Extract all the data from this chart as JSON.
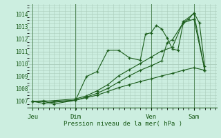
{
  "background_color": "#cceee0",
  "grid_color": "#aaccbb",
  "line_color": "#1a5c1a",
  "xlabel": "Pression niveau de la mer( hPa )",
  "ylim": [
    1006.5,
    1014.8
  ],
  "yticks": [
    1007,
    1008,
    1009,
    1010,
    1011,
    1012,
    1013,
    1014
  ],
  "xtick_labels": [
    "Jeu",
    "Dim",
    "Ven",
    "Sam"
  ],
  "xtick_positions": [
    0.0,
    0.222,
    0.611,
    0.833
  ],
  "vline_positions": [
    0.0,
    0.222,
    0.611,
    0.833
  ],
  "series": [
    {
      "x": [
        0.0,
        0.056,
        0.111,
        0.222,
        0.278,
        0.333,
        0.389,
        0.444,
        0.5,
        0.556,
        0.583,
        0.611,
        0.639,
        0.667,
        0.694,
        0.722,
        0.75,
        0.778,
        0.806,
        0.833,
        0.861,
        0.889
      ],
      "y": [
        1007.0,
        1007.0,
        1006.8,
        1007.1,
        1009.0,
        1009.4,
        1011.1,
        1011.1,
        1010.5,
        1010.3,
        1012.4,
        1012.5,
        1013.1,
        1012.8,
        1012.1,
        1011.2,
        1011.1,
        1013.3,
        1013.6,
        1014.1,
        1013.3,
        1009.8
      ]
    },
    {
      "x": [
        0.0,
        0.056,
        0.111,
        0.222,
        0.278,
        0.333,
        0.389,
        0.444,
        0.5,
        0.556,
        0.611,
        0.667,
        0.722,
        0.778,
        0.833,
        0.889
      ],
      "y": [
        1007.0,
        1007.05,
        1007.0,
        1007.1,
        1007.3,
        1007.5,
        1007.8,
        1008.1,
        1008.35,
        1008.6,
        1008.8,
        1009.05,
        1009.25,
        1009.5,
        1009.7,
        1009.5
      ]
    },
    {
      "x": [
        0.0,
        0.056,
        0.222,
        0.278,
        0.333,
        0.389,
        0.444,
        0.5,
        0.556,
        0.611,
        0.667,
        0.694,
        0.722,
        0.778,
        0.833,
        0.889
      ],
      "y": [
        1007.0,
        1006.85,
        1007.1,
        1007.35,
        1007.65,
        1008.05,
        1008.55,
        1009.05,
        1009.5,
        1009.85,
        1010.25,
        1011.7,
        1011.95,
        1013.3,
        1013.6,
        1009.5
      ]
    },
    {
      "x": [
        0.0,
        0.056,
        0.222,
        0.278,
        0.333,
        0.389,
        0.444,
        0.5,
        0.556,
        0.611,
        0.667,
        0.722,
        0.778,
        0.833,
        0.889
      ],
      "y": [
        1007.0,
        1007.0,
        1007.2,
        1007.45,
        1007.85,
        1008.35,
        1009.05,
        1009.55,
        1010.05,
        1010.55,
        1011.05,
        1011.35,
        1013.4,
        1014.05,
        1009.5
      ]
    }
  ]
}
